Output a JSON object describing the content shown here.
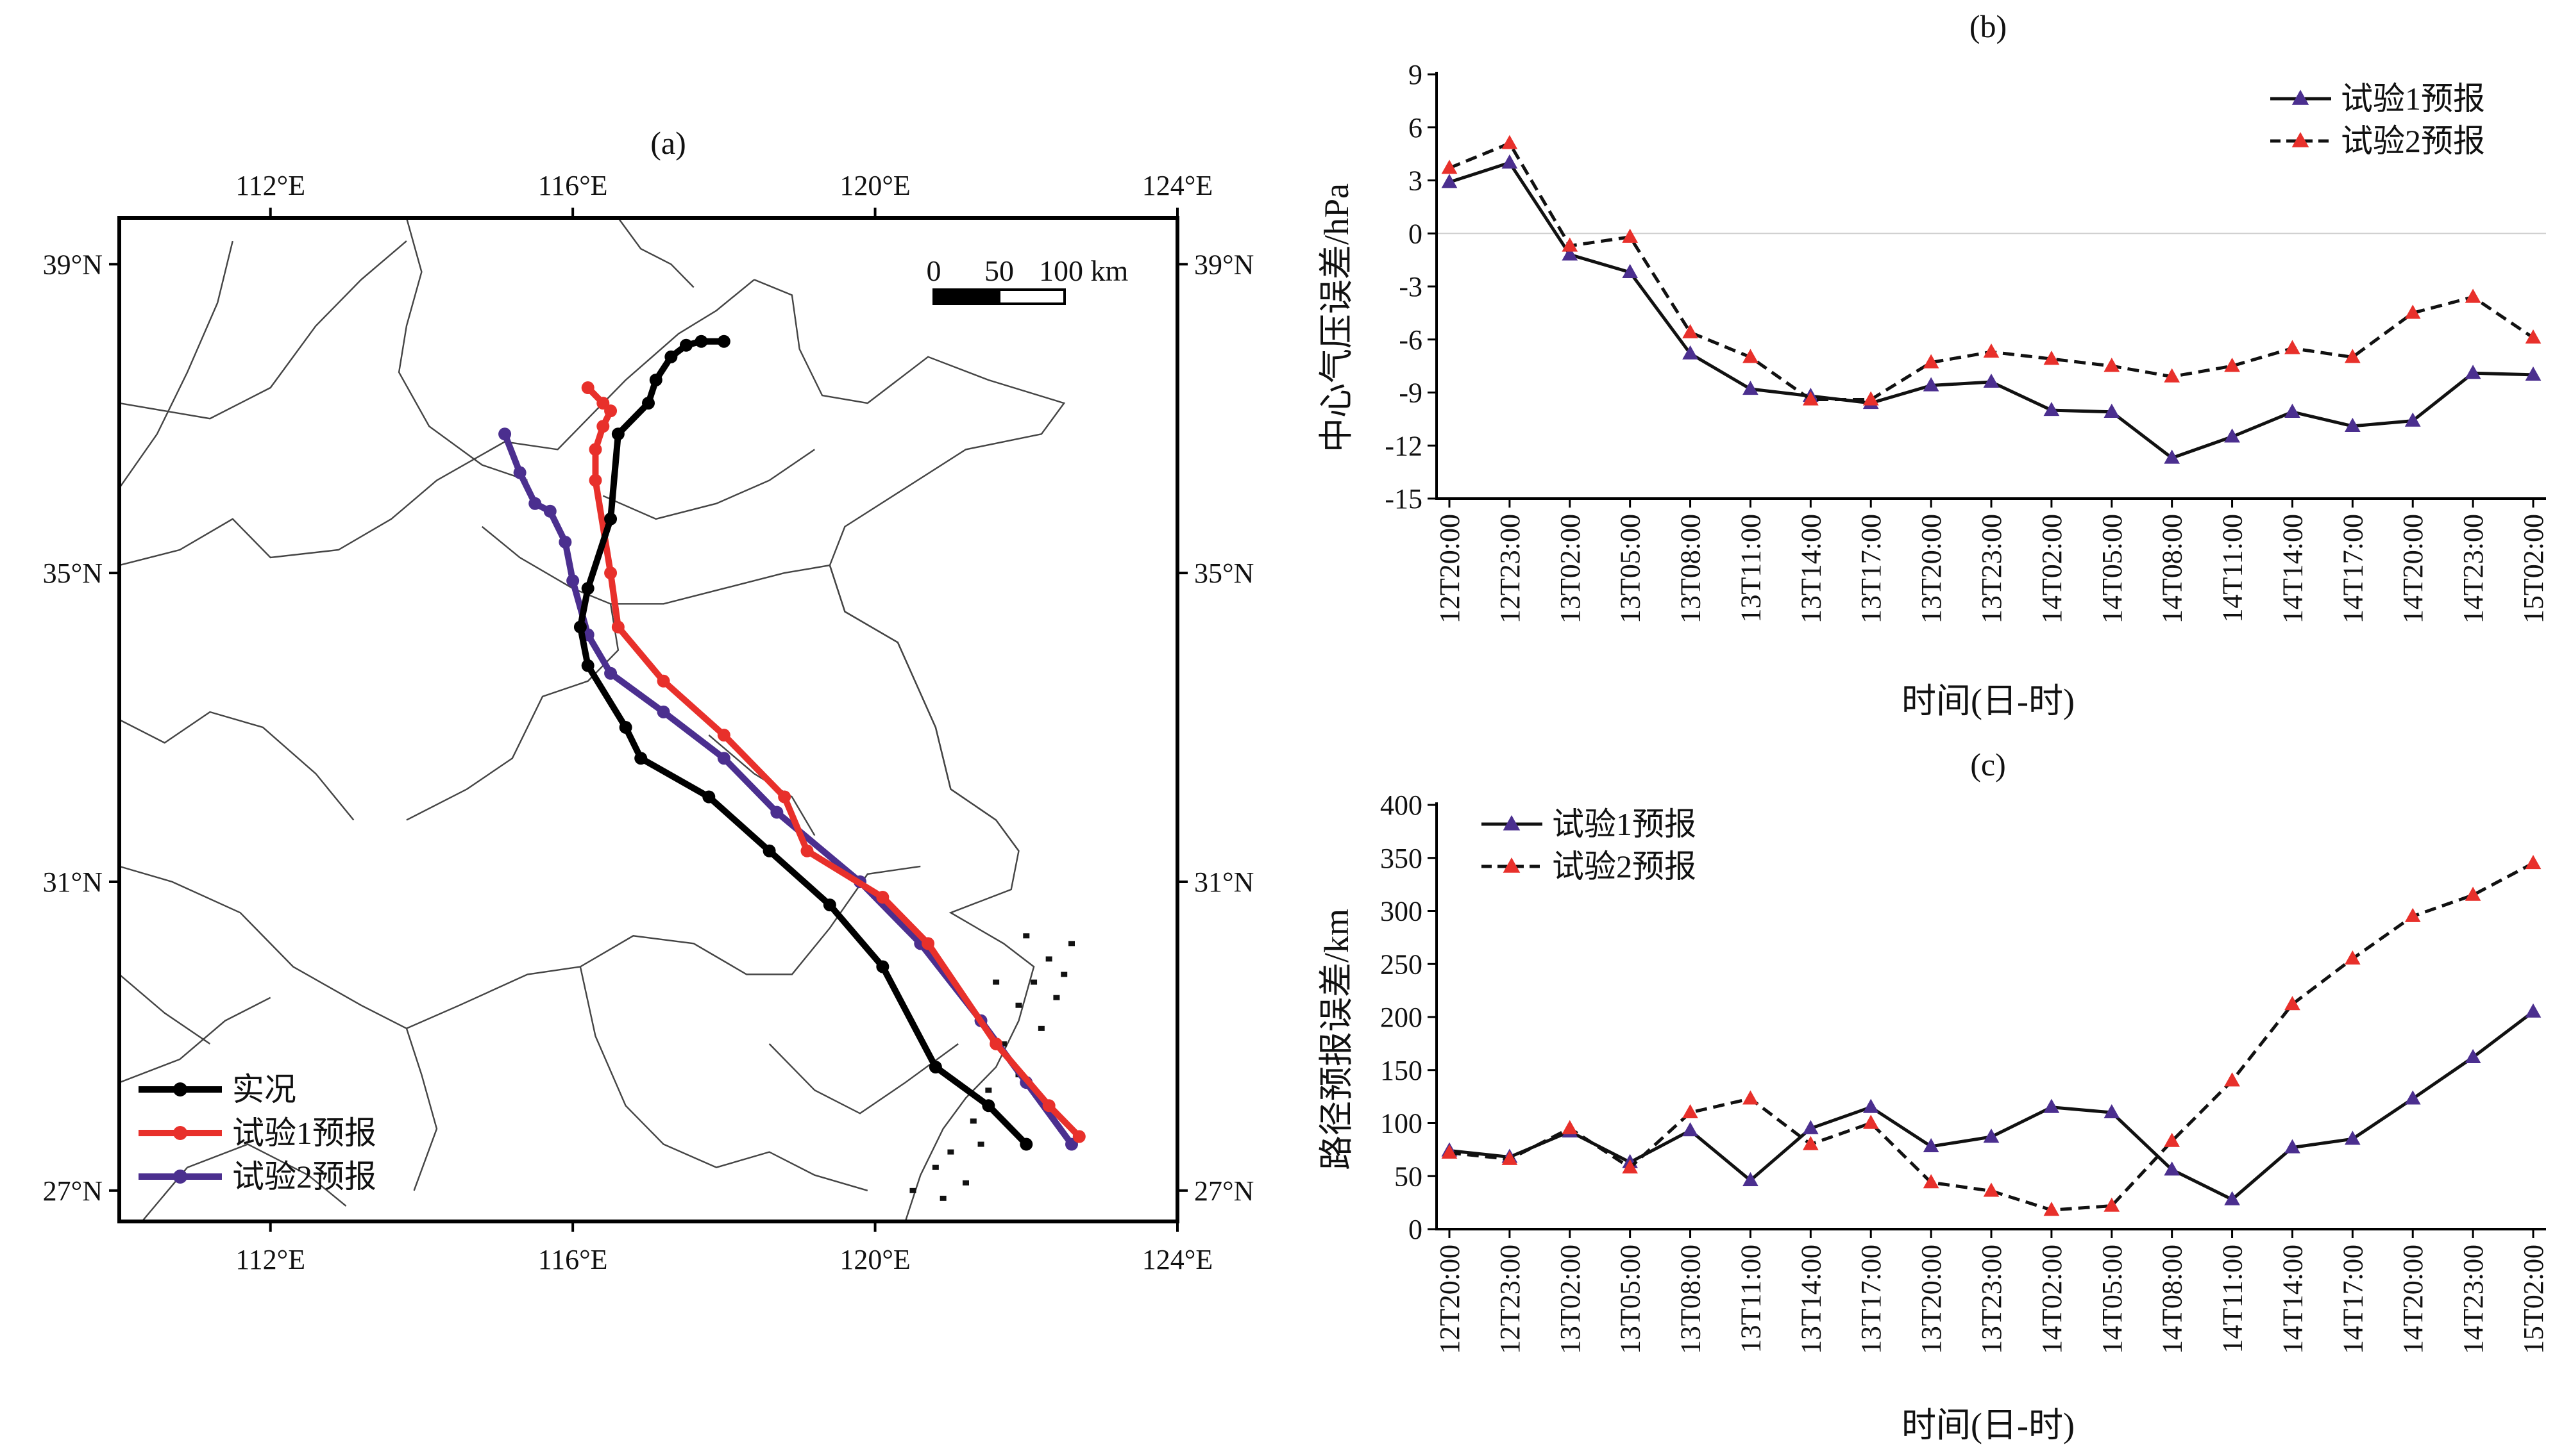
{
  "chart_data": [
    {
      "panel_label": "(a)",
      "type": "map",
      "lon_range": [
        110,
        124
      ],
      "lat_range": [
        26.6,
        39.6
      ],
      "lon_ticks": [
        "112°E",
        "116°E",
        "120°E",
        "124°E"
      ],
      "lat_ticks": [
        "39°N",
        "35°N",
        "31°N",
        "27°N"
      ],
      "scalebar_labels": [
        "0",
        "50",
        "100 km"
      ],
      "legend_position": "bottom-left",
      "series": [
        {
          "name": "实况",
          "color": "#000000",
          "points": [
            [
              118.0,
              38.0
            ],
            [
              117.7,
              38.0
            ],
            [
              117.5,
              37.95
            ],
            [
              117.3,
              37.8
            ],
            [
              117.1,
              37.5
            ],
            [
              117.0,
              37.2
            ],
            [
              116.6,
              36.8
            ],
            [
              116.5,
              35.7
            ],
            [
              116.2,
              34.8
            ],
            [
              116.1,
              34.3
            ],
            [
              116.2,
              33.8
            ],
            [
              116.7,
              33.0
            ],
            [
              116.9,
              32.6
            ],
            [
              117.8,
              32.1
            ],
            [
              118.6,
              31.4
            ],
            [
              119.4,
              30.7
            ],
            [
              120.1,
              29.9
            ],
            [
              120.8,
              28.6
            ],
            [
              121.5,
              28.1
            ],
            [
              122.0,
              27.6
            ]
          ]
        },
        {
          "name": "试验1预报",
          "color": "#e8302b",
          "points": [
            [
              116.2,
              37.4
            ],
            [
              116.4,
              37.2
            ],
            [
              116.5,
              37.1
            ],
            [
              116.4,
              36.9
            ],
            [
              116.3,
              36.6
            ],
            [
              116.3,
              36.2
            ],
            [
              116.5,
              35.0
            ],
            [
              116.6,
              34.3
            ],
            [
              117.2,
              33.6
            ],
            [
              118.0,
              32.9
            ],
            [
              118.8,
              32.1
            ],
            [
              119.1,
              31.4
            ],
            [
              120.1,
              30.8
            ],
            [
              120.7,
              30.2
            ],
            [
              121.6,
              28.9
            ],
            [
              122.3,
              28.1
            ],
            [
              122.7,
              27.7
            ]
          ]
        },
        {
          "name": "试验2预报",
          "color": "#4b2f8f",
          "points": [
            [
              115.1,
              36.8
            ],
            [
              115.3,
              36.3
            ],
            [
              115.5,
              35.9
            ],
            [
              115.7,
              35.8
            ],
            [
              115.9,
              35.4
            ],
            [
              116.0,
              34.9
            ],
            [
              116.2,
              34.2
            ],
            [
              116.5,
              33.7
            ],
            [
              117.2,
              33.2
            ],
            [
              118.0,
              32.6
            ],
            [
              118.7,
              31.9
            ],
            [
              119.8,
              31.0
            ],
            [
              120.6,
              30.2
            ],
            [
              121.4,
              29.2
            ],
            [
              122.0,
              28.4
            ],
            [
              122.6,
              27.6
            ]
          ]
        }
      ]
    },
    {
      "panel_label": "(b)",
      "type": "line",
      "ylabel": "中心气压误差/hPa",
      "xlabel": "时间(日-时)",
      "ylim": [
        -15,
        9
      ],
      "yticks": [
        "9",
        "6",
        "3",
        "0",
        "-3",
        "-6",
        "-9",
        "-12",
        "-15"
      ],
      "ytick_values": [
        9,
        6,
        3,
        0,
        -3,
        -6,
        -9,
        -12,
        -15
      ],
      "categories": [
        "12T20:00",
        "12T23:00",
        "13T02:00",
        "13T05:00",
        "13T08:00",
        "13T11:00",
        "13T14:00",
        "13T17:00",
        "13T20:00",
        "13T23:00",
        "14T02:00",
        "14T05:00",
        "14T08:00",
        "14T11:00",
        "14T14:00",
        "14T17:00",
        "14T20:00",
        "14T23:00",
        "15T02:00"
      ],
      "legend_position": "top-right",
      "series": [
        {
          "name": "试验1预报",
          "color": "#111111",
          "marker_color": "#4b2f8f",
          "dashed": false,
          "values": [
            2.9,
            4.0,
            -1.2,
            -2.2,
            -6.8,
            -8.8,
            -9.2,
            -9.6,
            -8.6,
            -8.4,
            -10.0,
            -10.1,
            -12.7,
            -11.5,
            -10.1,
            -10.9,
            -10.6,
            -7.9,
            -8.0
          ]
        },
        {
          "name": "试验2预报",
          "color": "#111111",
          "marker_color": "#e8302b",
          "dashed": true,
          "values": [
            3.7,
            5.1,
            -0.7,
            -0.2,
            -5.6,
            -7.0,
            -9.4,
            -9.4,
            -7.3,
            -6.7,
            -7.1,
            -7.5,
            -8.1,
            -7.5,
            -6.5,
            -7.0,
            -4.5,
            -3.6,
            -5.9
          ]
        }
      ]
    },
    {
      "panel_label": "(c)",
      "type": "line",
      "ylabel": "路径预报误差/km",
      "xlabel": "时间(日-时)",
      "ylim": [
        0,
        400
      ],
      "yticks": [
        "400",
        "350",
        "300",
        "250",
        "200",
        "150",
        "100",
        "50",
        "0"
      ],
      "ytick_values": [
        400,
        350,
        300,
        250,
        200,
        150,
        100,
        50,
        0
      ],
      "categories": [
        "12T20:00",
        "12T23:00",
        "13T02:00",
        "13T05:00",
        "13T08:00",
        "13T11:00",
        "13T14:00",
        "13T17:00",
        "13T20:00",
        "13T23:00",
        "14T02:00",
        "14T05:00",
        "14T08:00",
        "14T11:00",
        "14T14:00",
        "14T17:00",
        "14T20:00",
        "14T23:00",
        "15T02:00"
      ],
      "legend_position": "top-left",
      "series": [
        {
          "name": "试验1预报",
          "color": "#111111",
          "marker_color": "#4b2f8f",
          "dashed": false,
          "values": [
            74,
            68,
            92,
            63,
            93,
            46,
            95,
            115,
            78,
            87,
            115,
            110,
            56,
            28,
            77,
            85,
            123,
            162,
            205
          ]
        },
        {
          "name": "试验2预报",
          "color": "#111111",
          "marker_color": "#e8302b",
          "dashed": true,
          "values": [
            72,
            66,
            95,
            58,
            110,
            123,
            80,
            100,
            44,
            36,
            18,
            22,
            83,
            140,
            212,
            255,
            295,
            315,
            345
          ]
        }
      ]
    }
  ]
}
